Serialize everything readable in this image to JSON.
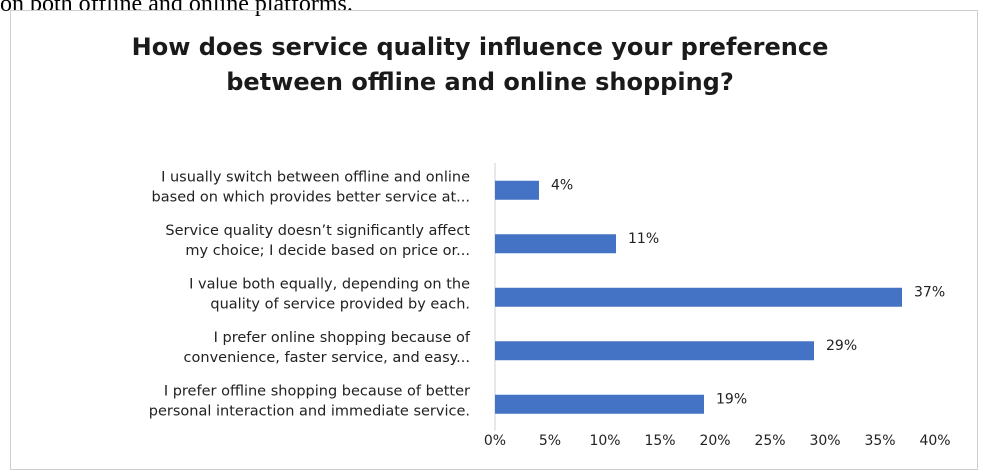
{
  "document": {
    "fragment_text": "on both offline and online platforms."
  },
  "chart_data": {
    "type": "bar",
    "orientation": "horizontal",
    "title": "How does service quality influence your preference between offline and online shopping?",
    "categories": [
      [
        "I usually switch between offline and online",
        "based on which provides better service at..."
      ],
      [
        "Service quality doesn’t significantly affect",
        "my choice; I decide based on price or..."
      ],
      [
        "I value both equally, depending on the",
        "quality of service provided by each."
      ],
      [
        "I prefer online shopping because of",
        "convenience, faster service, and easy..."
      ],
      [
        "I prefer offline shopping because of better",
        "personal interaction and immediate service."
      ]
    ],
    "values": [
      4,
      11,
      37,
      29,
      19
    ],
    "value_labels": [
      "4%",
      "11%",
      "37%",
      "29%",
      "19%"
    ],
    "x_ticks": [
      "0%",
      "5%",
      "10%",
      "15%",
      "20%",
      "25%",
      "30%",
      "35%",
      "40%"
    ],
    "xlim": [
      0,
      40
    ],
    "grid": false,
    "legend": "none",
    "bar_color": "#4472c4"
  }
}
